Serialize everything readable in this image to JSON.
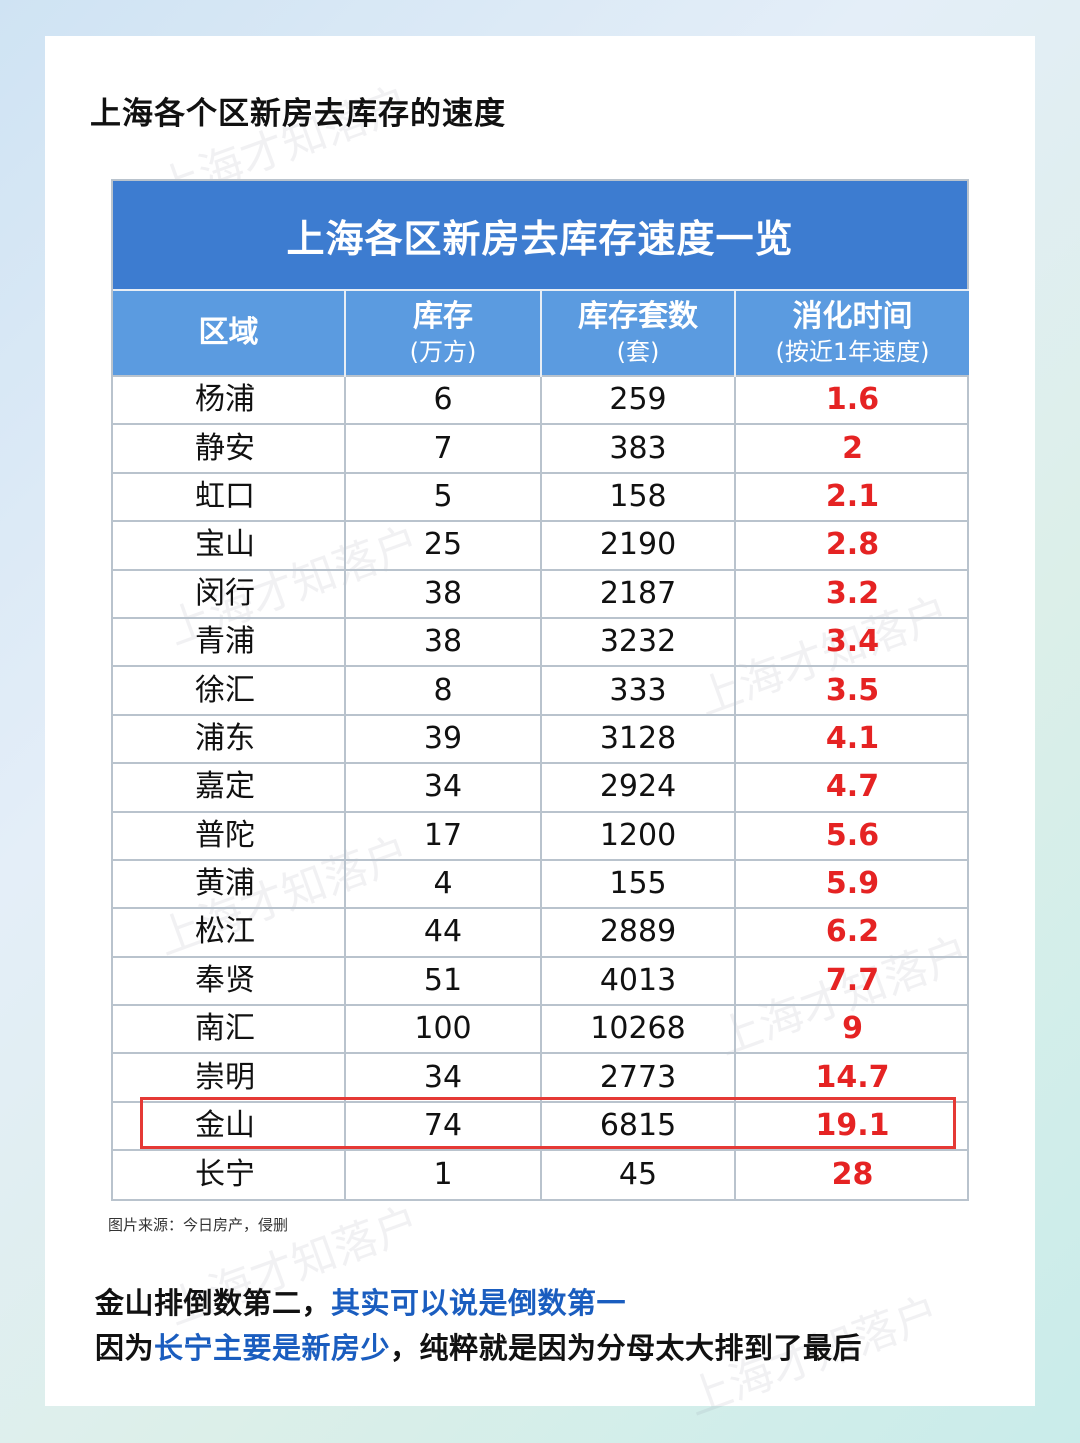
{
  "page": {
    "title": "上海各个区新房去库存的速度",
    "source_note": "图片来源：今日房产，侵删"
  },
  "table": {
    "banner_title": "上海各区新房去库存速度一览",
    "columns": [
      {
        "main": "区域",
        "sub": ""
      },
      {
        "main": "库存",
        "sub": "(万方)"
      },
      {
        "main": "库存套数",
        "sub": "(套)"
      },
      {
        "main": "消化时间",
        "sub": "(按近1年速度)"
      }
    ],
    "rows": [
      {
        "region": "杨浦",
        "stock": "6",
        "units": "259",
        "time": "1.6"
      },
      {
        "region": "静安",
        "stock": "7",
        "units": "383",
        "time": "2"
      },
      {
        "region": "虹口",
        "stock": "5",
        "units": "158",
        "time": "2.1"
      },
      {
        "region": "宝山",
        "stock": "25",
        "units": "2190",
        "time": "2.8"
      },
      {
        "region": "闵行",
        "stock": "38",
        "units": "2187",
        "time": "3.2"
      },
      {
        "region": "青浦",
        "stock": "38",
        "units": "3232",
        "time": "3.4"
      },
      {
        "region": "徐汇",
        "stock": "8",
        "units": "333",
        "time": "3.5"
      },
      {
        "region": "浦东",
        "stock": "39",
        "units": "3128",
        "time": "4.1"
      },
      {
        "region": "嘉定",
        "stock": "34",
        "units": "2924",
        "time": "4.7"
      },
      {
        "region": "普陀",
        "stock": "17",
        "units": "1200",
        "time": "5.6"
      },
      {
        "region": "黄浦",
        "stock": "4",
        "units": "155",
        "time": "5.9"
      },
      {
        "region": "松江",
        "stock": "44",
        "units": "2889",
        "time": "6.2"
      },
      {
        "region": "奉贤",
        "stock": "51",
        "units": "4013",
        "time": "7.7"
      },
      {
        "region": "南汇",
        "stock": "100",
        "units": "10268",
        "time": "9"
      },
      {
        "region": "崇明",
        "stock": "34",
        "units": "2773",
        "time": "14.7"
      },
      {
        "region": "金山",
        "stock": "74",
        "units": "6815",
        "time": "19.1"
      },
      {
        "region": "长宁",
        "stock": "1",
        "units": "45",
        "time": "28"
      }
    ],
    "highlight_color": "#e53935",
    "header_color": "#5b9be0",
    "banner_color": "#3d7cd0"
  },
  "footer": {
    "line1_a": "金山排倒数第二，",
    "line1_b": "其实可以说是倒数第一",
    "line2_a": "因为",
    "line2_b": "长宁主要是新房少",
    "line2_c": "，纯粹就是因为分母太大排到了最后"
  },
  "watermark": "上海才知落户"
}
